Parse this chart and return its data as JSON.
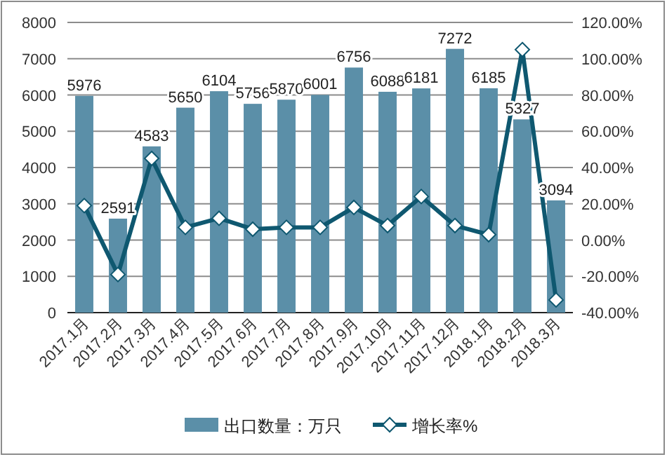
{
  "chart_data": {
    "type": "bar",
    "categories": [
      "2017.1月",
      "2017.2月",
      "2017.3月",
      "2017.4月",
      "2017.5月",
      "2017.6月",
      "2017.7月",
      "2017.8月",
      "2017.9月",
      "2017.10月",
      "2017.11月",
      "2017.12月",
      "2018.1月",
      "2018.2月",
      "2018.3月"
    ],
    "series": [
      {
        "name": "出口数量：万只",
        "color": "#5b8fa8",
        "values": [
          5976,
          2591,
          4583,
          5650,
          6104,
          5756,
          5870,
          6001,
          6756,
          6088,
          6181,
          7272,
          6185,
          5327,
          3094
        ],
        "value_labels": [
          "5976",
          "2591",
          "4583",
          "5650",
          "6104",
          "5756",
          "5870",
          "6001",
          "6756",
          "6088",
          "6181",
          "7272",
          "6185",
          "5327",
          "3094"
        ]
      },
      {
        "name": "增长率%",
        "type": "line",
        "axis": "y2",
        "color": "#0f5870",
        "marker": "diamond",
        "values": [
          19,
          -19,
          45,
          7,
          12,
          6,
          7,
          7,
          18,
          8,
          24,
          8,
          3,
          105,
          -33
        ]
      }
    ],
    "ylim": [
      0,
      8000
    ],
    "yticks": [
      0,
      1000,
      2000,
      3000,
      4000,
      5000,
      6000,
      7000,
      8000
    ],
    "y2lim": [
      -40,
      120
    ],
    "y2ticks": [
      {
        "value": -40,
        "label": "-40.00%"
      },
      {
        "value": -20,
        "label": "-20.00%"
      },
      {
        "value": 0,
        "label": "0.00%"
      },
      {
        "value": 20,
        "label": "20.00%"
      },
      {
        "value": 40,
        "label": "40.00%"
      },
      {
        "value": 60,
        "label": "60.00%"
      },
      {
        "value": 80,
        "label": "80.00%"
      },
      {
        "value": 100,
        "label": "100.00%"
      },
      {
        "value": 120,
        "label": "120.00%"
      }
    ],
    "grid": "y",
    "legend": "bottom"
  }
}
